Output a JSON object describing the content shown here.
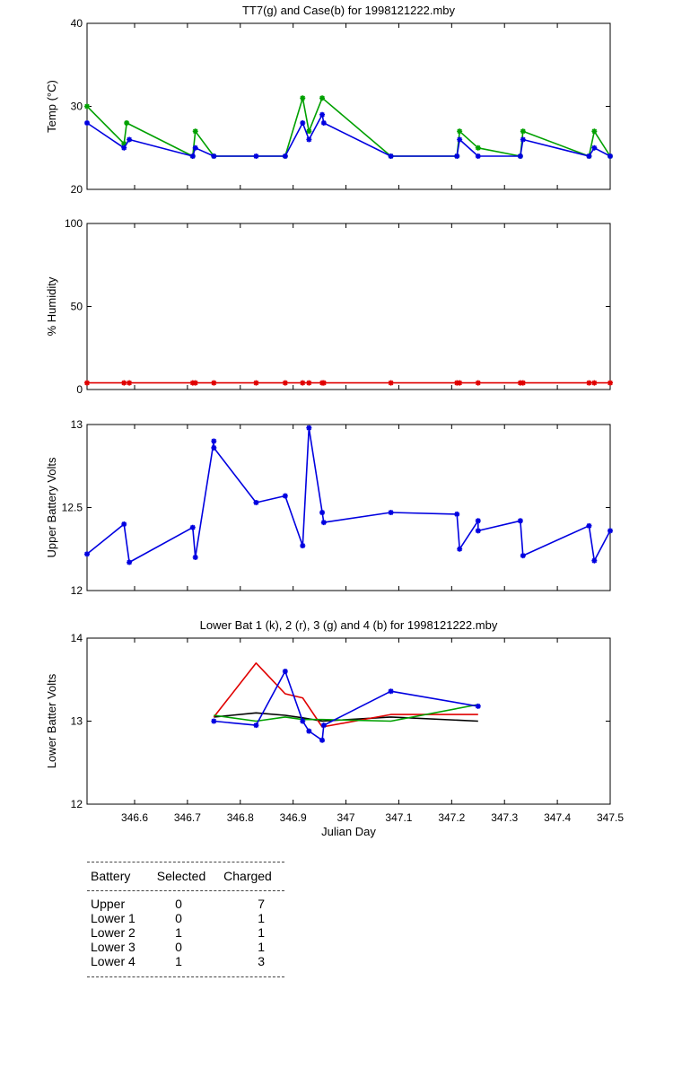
{
  "colors": {
    "green": "#00a000",
    "blue": "#0000e0",
    "red": "#e00000",
    "black": "#000000"
  },
  "chart_data": [
    {
      "type": "line",
      "title": "TT7(g) and Case(b) for 1998121222.mby",
      "ylabel": "Temp  (°C)",
      "xlim": [
        346.51,
        347.5
      ],
      "ylim": [
        20,
        40
      ],
      "yticks": [
        20,
        30,
        40
      ],
      "series": [
        {
          "color": "green",
          "marker": "*",
          "x": [
            346.51,
            346.58,
            346.585,
            346.71,
            346.715,
            346.75,
            346.885,
            346.918,
            346.93,
            346.955,
            347.085,
            347.21,
            347.215,
            347.25,
            347.33,
            347.335,
            347.46,
            347.47,
            347.5
          ],
          "y": [
            30,
            25.5,
            28,
            24,
            27,
            24,
            24,
            31,
            27,
            31,
            24,
            24,
            27,
            25,
            24,
            27,
            24,
            27,
            24
          ]
        },
        {
          "color": "blue",
          "marker": "*",
          "x": [
            346.51,
            346.58,
            346.59,
            346.71,
            346.715,
            346.75,
            346.83,
            346.885,
            346.918,
            346.93,
            346.955,
            346.958,
            347.085,
            347.21,
            347.215,
            347.25,
            347.33,
            347.335,
            347.46,
            347.47,
            347.5
          ],
          "y": [
            28,
            25,
            26,
            24,
            25,
            24,
            24,
            24,
            28,
            26,
            29,
            28,
            24,
            24,
            26,
            24,
            24,
            26,
            24,
            25,
            24
          ]
        }
      ]
    },
    {
      "type": "line",
      "title": "",
      "ylabel": "% Humidity",
      "xlim": [
        346.51,
        347.5
      ],
      "ylim": [
        0,
        100
      ],
      "yticks": [
        0,
        50,
        100
      ],
      "series": [
        {
          "color": "red",
          "marker": "*",
          "x": [
            346.51,
            346.58,
            346.59,
            346.71,
            346.715,
            346.75,
            346.83,
            346.885,
            346.918,
            346.93,
            346.955,
            346.958,
            347.085,
            347.21,
            347.215,
            347.25,
            347.33,
            347.335,
            347.46,
            347.47,
            347.5
          ],
          "y": [
            4,
            4,
            4,
            4,
            4,
            4,
            4,
            4,
            4,
            4,
            4,
            4,
            4,
            4,
            4,
            4,
            4,
            4,
            4,
            4,
            4
          ]
        }
      ]
    },
    {
      "type": "line",
      "title": "",
      "ylabel": "Upper Battery Volts",
      "xlim": [
        346.51,
        347.5
      ],
      "ylim": [
        12,
        13
      ],
      "yticks": [
        12,
        12.5,
        13
      ],
      "series": [
        {
          "color": "blue",
          "marker": "*",
          "x": [
            346.51,
            346.58,
            346.59,
            346.71,
            346.715,
            346.75,
            346.75,
            346.83,
            346.885,
            346.918,
            346.93,
            346.955,
            346.958,
            347.085,
            347.21,
            347.215,
            347.25,
            347.25,
            347.33,
            347.335,
            347.46,
            347.47,
            347.5
          ],
          "y": [
            12.22,
            12.4,
            12.17,
            12.38,
            12.2,
            12.9,
            12.86,
            12.53,
            12.57,
            12.27,
            12.98,
            12.47,
            12.41,
            12.47,
            12.46,
            12.25,
            12.42,
            12.36,
            12.42,
            12.21,
            12.39,
            12.18,
            12.36
          ]
        }
      ]
    },
    {
      "type": "line",
      "title": "Lower Bat 1 (k), 2 (r), 3 (g) and 4 (b) for 1998121222.mby",
      "xlabel": "Julian Day",
      "ylabel": "Lower Batter Volts",
      "xlim": [
        346.51,
        347.5
      ],
      "ylim": [
        12,
        14
      ],
      "yticks": [
        12,
        13,
        14
      ],
      "xticks": [
        346.6,
        346.7,
        346.8,
        346.9,
        347,
        347.1,
        347.2,
        347.3,
        347.4,
        347.5
      ],
      "xticklabels": [
        "346.6",
        "346.7",
        "346.8",
        "346.9",
        "347",
        "347.1",
        "347.2",
        "347.3",
        "347.4",
        "347.5"
      ],
      "series": [
        {
          "color": "black",
          "x": [
            346.75,
            346.83,
            346.885,
            346.918,
            346.955,
            347.085,
            347.25
          ],
          "y": [
            13.05,
            13.1,
            13.07,
            13.04,
            13.0,
            13.05,
            13.0
          ]
        },
        {
          "color": "red",
          "x": [
            346.75,
            346.83,
            346.885,
            346.918,
            346.955,
            347.085,
            347.25
          ],
          "y": [
            13.05,
            13.7,
            13.33,
            13.28,
            12.93,
            13.08,
            13.08
          ]
        },
        {
          "color": "green",
          "x": [
            346.75,
            346.83,
            346.885,
            346.918,
            346.955,
            347.085,
            347.25
          ],
          "y": [
            13.07,
            13.0,
            13.05,
            13.02,
            13.02,
            13.0,
            13.2
          ]
        },
        {
          "color": "blue",
          "marker": "*",
          "x": [
            346.75,
            346.83,
            346.885,
            346.918,
            346.93,
            346.955,
            346.958,
            347.085,
            347.25
          ],
          "y": [
            13.0,
            12.95,
            13.6,
            13.0,
            12.88,
            12.77,
            12.95,
            13.36,
            13.18
          ]
        }
      ]
    }
  ],
  "battery_table": {
    "headers": [
      "Battery",
      "Selected",
      "Charged"
    ],
    "rows": [
      {
        "battery": "Upper",
        "selected": "0",
        "charged": "7"
      },
      {
        "battery": "Lower 1",
        "selected": "0",
        "charged": "1"
      },
      {
        "battery": "Lower 2",
        "selected": "1",
        "charged": "1"
      },
      {
        "battery": "Lower 3",
        "selected": "0",
        "charged": "1"
      },
      {
        "battery": "Lower 4",
        "selected": "1",
        "charged": "3"
      }
    ]
  }
}
